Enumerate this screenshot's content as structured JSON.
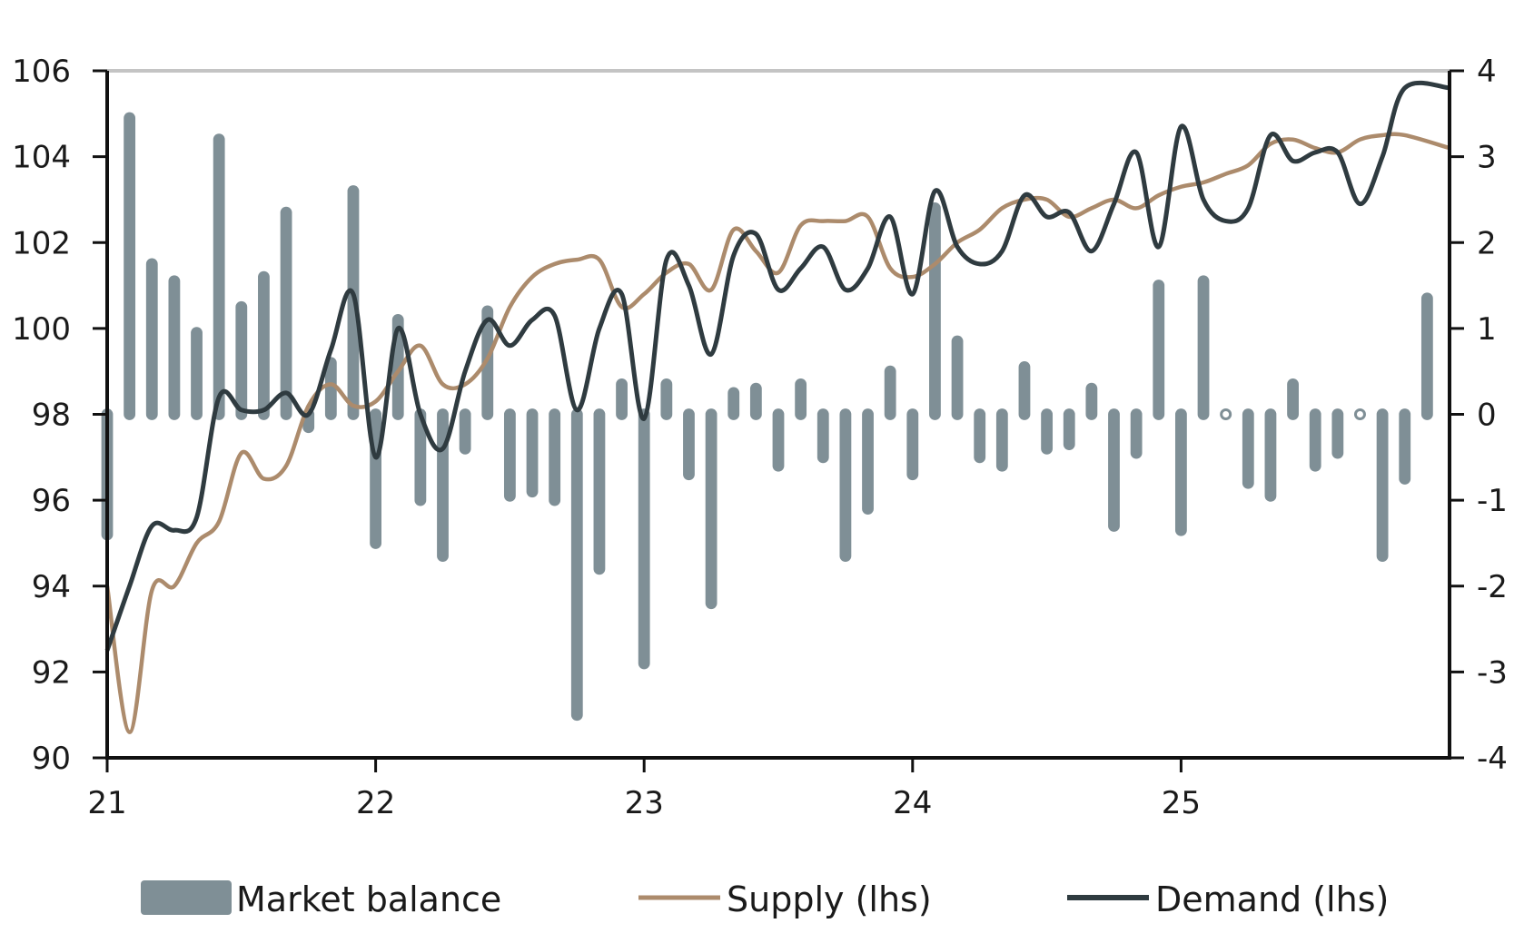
{
  "colors": {
    "bar": "#7f8f96",
    "supply": "#ac8b6c",
    "demand": "#2f3b40",
    "axis": "#111111",
    "top_line": "#c4c4c4"
  },
  "chart_data": {
    "type": "bar+line",
    "title": "",
    "x_tick_labels": [
      "21",
      "22",
      "23",
      "24",
      "25"
    ],
    "x_range": [
      0,
      59
    ],
    "y_left": {
      "range": [
        90,
        106
      ],
      "ticks": [
        "90",
        "92",
        "94",
        "96",
        "98",
        "100",
        "102",
        "104",
        "106"
      ]
    },
    "y_right": {
      "range": [
        -4,
        4
      ],
      "ticks": [
        "-4",
        "-3",
        "-2",
        "-1",
        "0",
        "1",
        "2",
        "3",
        "4"
      ]
    },
    "legend": {
      "position": "bottom",
      "items": [
        "Market balance",
        "Supply (lhs)",
        "Demand (lhs)"
      ]
    },
    "series": [
      {
        "name": "Market balance",
        "kind": "bar",
        "axis": "right",
        "values": [
          -1.4,
          3.45,
          1.75,
          1.55,
          0.95,
          3.2,
          1.25,
          1.6,
          2.35,
          -0.15,
          0.6,
          2.6,
          -1.5,
          1.1,
          -1.0,
          -1.65,
          -0.4,
          1.2,
          -0.95,
          -0.9,
          -1.0,
          -3.5,
          -1.8,
          0.35,
          -2.9,
          0.35,
          -0.7,
          -2.2,
          0.25,
          0.3,
          -0.6,
          0.35,
          -0.5,
          -1.65,
          -1.1,
          0.5,
          -0.7,
          2.4,
          0.85,
          -0.5,
          -0.6,
          0.55,
          -0.4,
          -0.35,
          0.3,
          -1.3,
          -0.45,
          1.5,
          -1.35,
          1.55,
          0.0,
          -0.8,
          -0.95,
          0.35,
          -0.6,
          -0.45,
          0.0,
          -1.65,
          -0.75,
          1.35
        ]
      },
      {
        "name": "Supply (lhs)",
        "kind": "line",
        "axis": "left",
        "values": [
          94.0,
          90.6,
          93.9,
          94.0,
          95.0,
          95.5,
          97.1,
          96.5,
          96.8,
          98.2,
          98.7,
          98.2,
          98.3,
          99.0,
          99.6,
          98.7,
          98.7,
          99.3,
          100.5,
          101.2,
          101.5,
          101.6,
          101.6,
          100.5,
          100.8,
          101.3,
          101.5,
          100.9,
          102.3,
          101.8,
          101.3,
          102.4,
          102.5,
          102.5,
          102.6,
          101.4,
          101.2,
          101.5,
          102.0,
          102.3,
          102.8,
          103.0,
          103.0,
          102.6,
          102.8,
          103.0,
          102.8,
          103.1,
          103.3,
          103.4,
          103.6,
          103.8,
          104.3,
          104.4,
          104.2,
          104.1,
          104.4,
          104.5,
          104.5,
          104.2
        ]
      },
      {
        "name": "Demand (lhs)",
        "kind": "line",
        "axis": "left",
        "values": [
          92.5,
          94.0,
          95.4,
          95.3,
          95.6,
          98.4,
          98.1,
          98.1,
          98.5,
          98.0,
          99.5,
          100.8,
          97.0,
          100.0,
          98.0,
          97.2,
          99.0,
          100.2,
          99.6,
          100.2,
          100.3,
          98.1,
          100.0,
          100.8,
          97.9,
          101.6,
          101.0,
          99.4,
          101.7,
          102.2,
          100.9,
          101.4,
          101.9,
          100.9,
          101.4,
          102.6,
          100.8,
          103.2,
          101.9,
          101.5,
          101.8,
          103.1,
          102.6,
          102.7,
          101.8,
          102.9,
          104.1,
          101.9,
          104.7,
          103.0,
          102.5,
          102.8,
          104.5,
          103.9,
          104.1,
          104.1,
          102.9,
          104.0,
          105.6,
          105.6
        ]
      }
    ]
  }
}
